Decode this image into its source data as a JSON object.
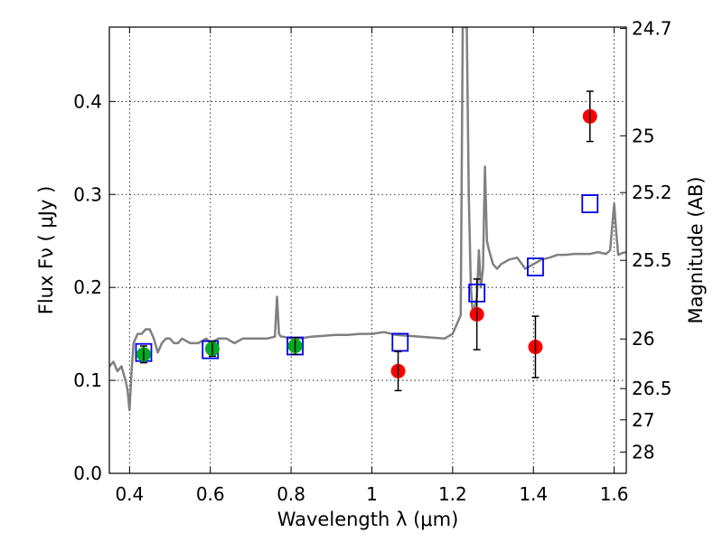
{
  "chart_data": {
    "type": "scatter",
    "xlabel": "Wavelength  λ (μm)",
    "ylabel": "Flux  Fν  ( μJy )",
    "ylabel_right": "Magnitude (AB)",
    "xlim": [
      0.35,
      1.63
    ],
    "ylim": [
      0,
      0.48
    ],
    "grid": true,
    "x_ticks": [
      {
        "v": 0.4,
        "label": "0.4"
      },
      {
        "v": 0.6,
        "label": "0.6"
      },
      {
        "v": 0.8,
        "label": "0.8"
      },
      {
        "v": 1.0,
        "label": "1"
      },
      {
        "v": 1.2,
        "label": "1.2"
      },
      {
        "v": 1.4,
        "label": "1.4"
      },
      {
        "v": 1.6,
        "label": "1.6"
      }
    ],
    "y_ticks": [
      {
        "v": 0.0,
        "label": "0.0"
      },
      {
        "v": 0.1,
        "label": "0.1"
      },
      {
        "v": 0.2,
        "label": "0.2"
      },
      {
        "v": 0.3,
        "label": "0.3"
      },
      {
        "v": 0.4,
        "label": "0.4"
      }
    ],
    "right_ticks": [
      {
        "mag": 24.7,
        "label": "24.7"
      },
      {
        "mag": 25.0,
        "label": "25"
      },
      {
        "mag": 25.2,
        "label": "25.2"
      },
      {
        "mag": 25.5,
        "label": "25.5"
      },
      {
        "mag": 26.0,
        "label": "26"
      },
      {
        "mag": 26.5,
        "label": "26.5"
      },
      {
        "mag": 27.0,
        "label": "27"
      },
      {
        "mag": 28.0,
        "label": "28"
      }
    ],
    "series": [
      {
        "kind": "line",
        "color": "#808080",
        "x": [
          0.35,
          0.36,
          0.37,
          0.38,
          0.39,
          0.395,
          0.4,
          0.405,
          0.41,
          0.42,
          0.43,
          0.44,
          0.45,
          0.46,
          0.47,
          0.48,
          0.49,
          0.5,
          0.51,
          0.52,
          0.53,
          0.55,
          0.57,
          0.59,
          0.6,
          0.62,
          0.64,
          0.66,
          0.68,
          0.7,
          0.72,
          0.74,
          0.76,
          0.765,
          0.77,
          0.775,
          0.78,
          0.8,
          0.82,
          0.85,
          0.88,
          0.91,
          0.94,
          0.97,
          1.0,
          1.03,
          1.06,
          1.09,
          1.12,
          1.15,
          1.18,
          1.2,
          1.21,
          1.22,
          1.225,
          1.23,
          1.235,
          1.24,
          1.245,
          1.25,
          1.26,
          1.265,
          1.27,
          1.275,
          1.28,
          1.285,
          1.29,
          1.3,
          1.31,
          1.32,
          1.34,
          1.36,
          1.38,
          1.4,
          1.42,
          1.44,
          1.46,
          1.48,
          1.5,
          1.52,
          1.54,
          1.56,
          1.58,
          1.59,
          1.6,
          1.605,
          1.61,
          1.62,
          1.63
        ],
        "y": [
          0.115,
          0.12,
          0.11,
          0.115,
          0.1,
          0.09,
          0.068,
          0.11,
          0.14,
          0.15,
          0.15,
          0.155,
          0.155,
          0.145,
          0.13,
          0.14,
          0.145,
          0.145,
          0.14,
          0.14,
          0.145,
          0.14,
          0.14,
          0.145,
          0.14,
          0.145,
          0.145,
          0.14,
          0.145,
          0.145,
          0.145,
          0.145,
          0.147,
          0.19,
          0.15,
          0.147,
          0.147,
          0.145,
          0.145,
          0.147,
          0.148,
          0.149,
          0.149,
          0.15,
          0.15,
          0.152,
          0.149,
          0.148,
          0.147,
          0.146,
          0.145,
          0.15,
          0.16,
          0.17,
          0.48,
          0.48,
          0.48,
          0.3,
          0.2,
          0.17,
          0.19,
          0.24,
          0.2,
          0.22,
          0.33,
          0.25,
          0.24,
          0.225,
          0.22,
          0.225,
          0.23,
          0.232,
          0.22,
          0.225,
          0.23,
          0.232,
          0.235,
          0.235,
          0.236,
          0.236,
          0.236,
          0.238,
          0.236,
          0.24,
          0.29,
          0.26,
          0.235,
          0.237,
          0.238
        ]
      },
      {
        "kind": "squares",
        "color": "#0000ee",
        "x": [
          0.435,
          0.6,
          0.81,
          1.07,
          1.26,
          1.405,
          1.54
        ],
        "y": [
          0.13,
          0.133,
          0.137,
          0.141,
          0.194,
          0.222,
          0.29
        ]
      },
      {
        "kind": "points",
        "color": "#00aa22",
        "err_color": "#000000",
        "x": [
          0.435,
          0.605,
          0.81
        ],
        "y": [
          0.128,
          0.134,
          0.137
        ],
        "err": [
          0.009,
          0.008,
          0.009
        ]
      },
      {
        "kind": "points",
        "color": "#ff0000",
        "err_color": "#000000",
        "x": [
          1.065,
          1.26,
          1.405,
          1.54
        ],
        "y": [
          0.11,
          0.171,
          0.136,
          0.384
        ],
        "err": [
          0.021,
          0.038,
          0.033,
          0.027
        ]
      }
    ]
  }
}
